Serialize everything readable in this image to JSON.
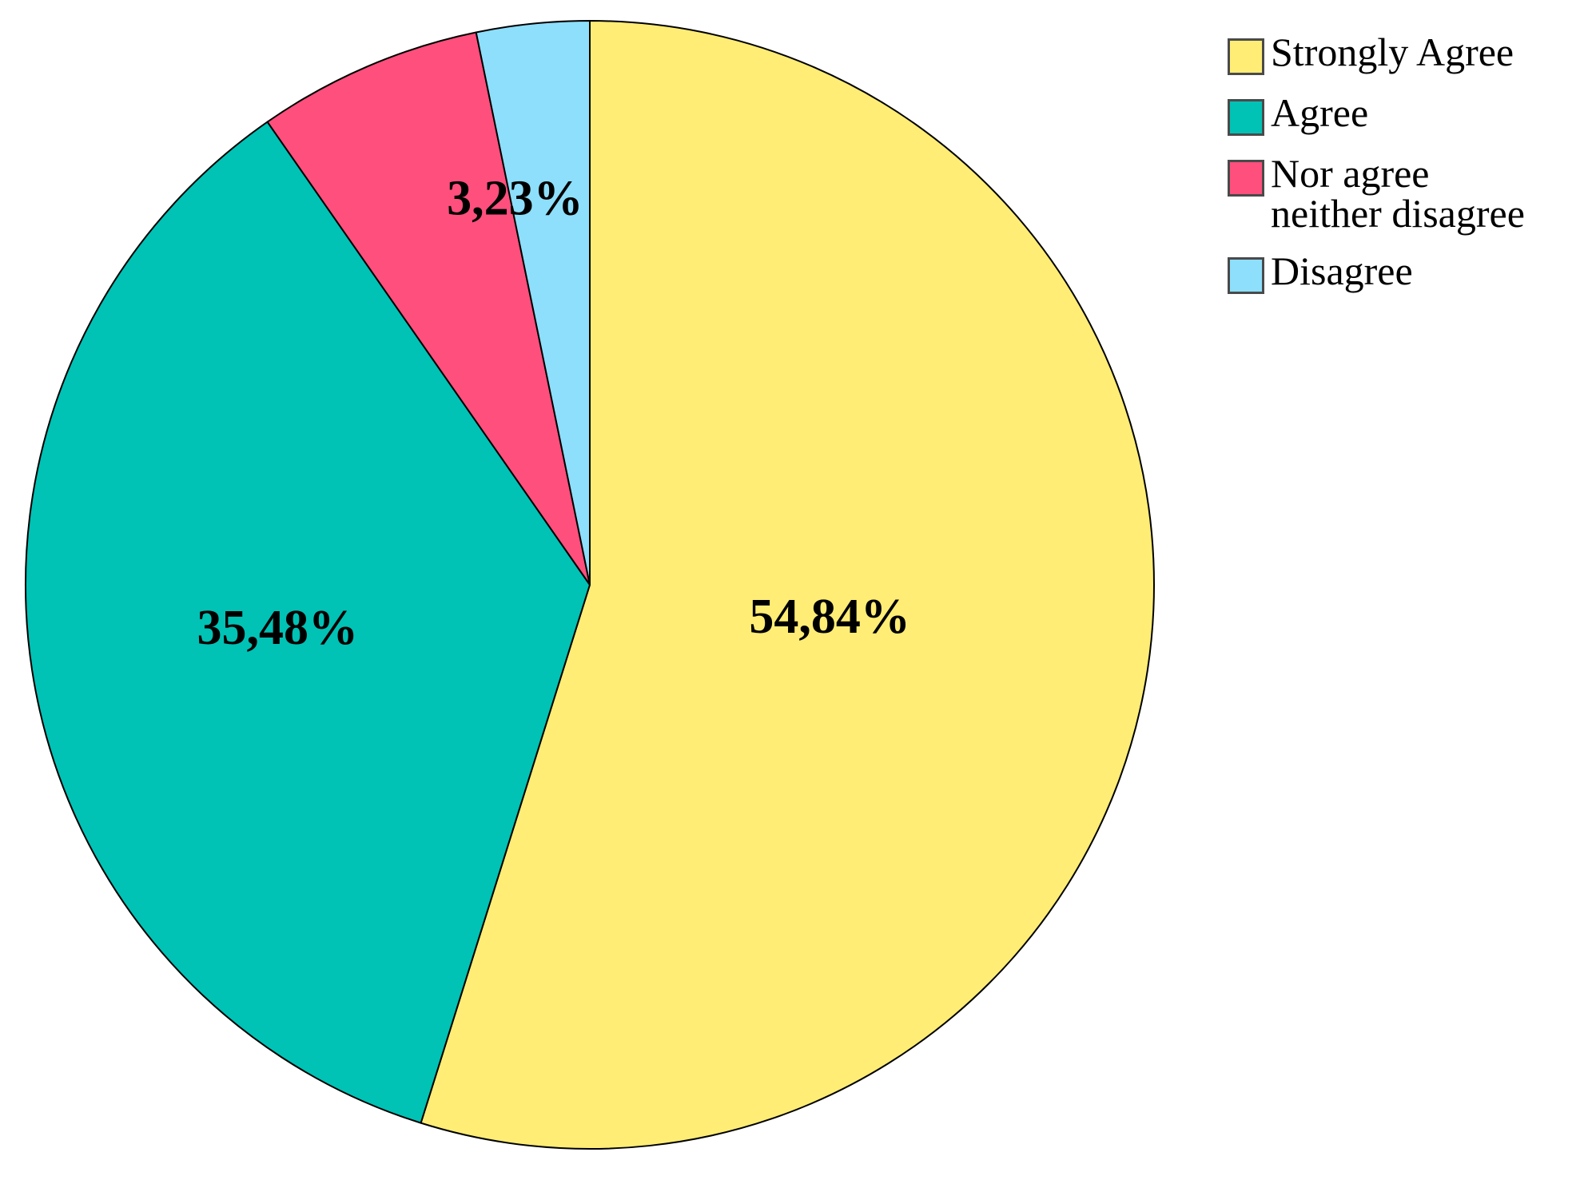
{
  "chart_data": {
    "type": "pie",
    "title": "",
    "start_angle_deg": 90,
    "direction": "clockwise",
    "legend_position": "top-right",
    "slices": [
      {
        "label": "Strongly Agree",
        "value": 54.84,
        "data_label": "54,84%",
        "color": "#FFED75"
      },
      {
        "label": "Agree",
        "value": 35.48,
        "data_label": "35,48%",
        "color": "#00C2B5"
      },
      {
        "label": "Nor agree\nneither disagree",
        "value": 6.45,
        "data_label": "",
        "color": "#FF4F7D"
      },
      {
        "label": "Disagree",
        "value": 3.23,
        "data_label": "3,23%",
        "color": "#8DDFFB"
      }
    ]
  }
}
